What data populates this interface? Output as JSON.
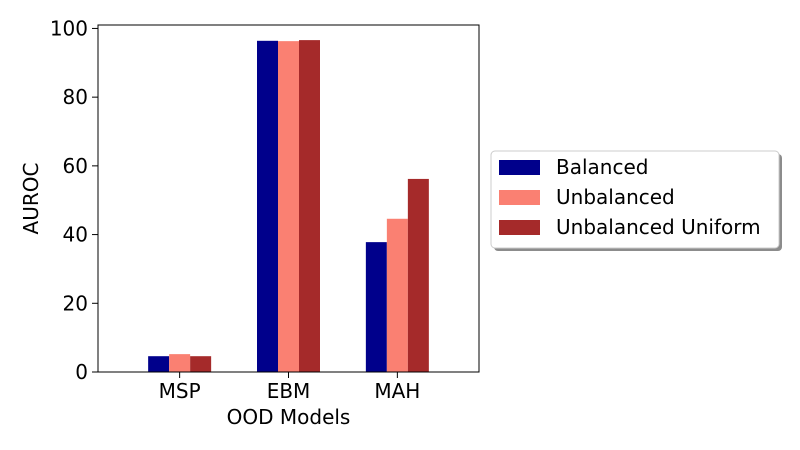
{
  "chart_data": {
    "type": "bar",
    "title": "",
    "xlabel": "OOD Models",
    "ylabel": "AUROC",
    "categories": [
      "MSP",
      "EBM",
      "MAH"
    ],
    "ylim": [
      0,
      101
    ],
    "yticks": [
      0,
      20,
      40,
      60,
      80,
      100
    ],
    "grid": false,
    "legend_position": "right, outside plot",
    "series": [
      {
        "name": "Balanced",
        "color": "#00008b",
        "values": [
          4.6,
          96.4,
          37.8
        ]
      },
      {
        "name": "Unbalanced",
        "color": "#fa8072",
        "values": [
          5.2,
          96.3,
          44.6
        ]
      },
      {
        "name": "Unbalanced Uniform",
        "color": "#a52a2a",
        "values": [
          4.6,
          96.6,
          56.2
        ]
      }
    ]
  }
}
